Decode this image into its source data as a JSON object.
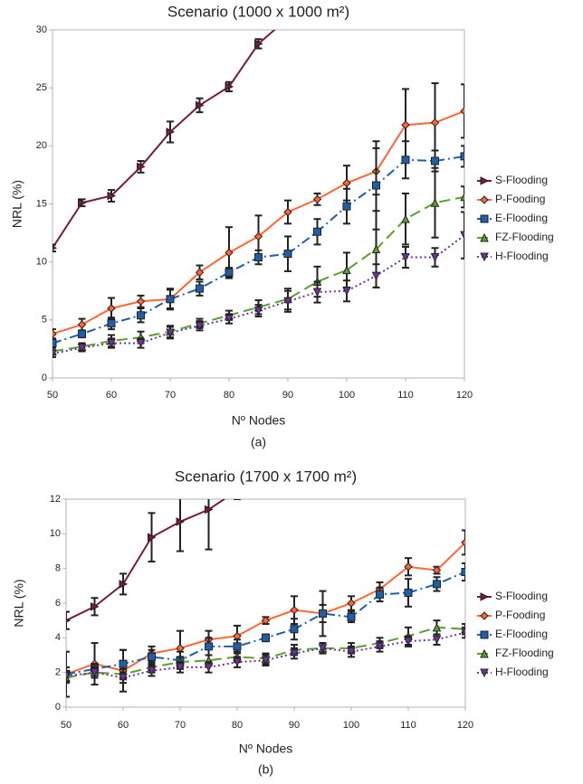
{
  "chart_data": [
    {
      "type": "line",
      "title": "Scenario (1000 x 1000 m²)",
      "subtitle": "(a)",
      "x_label": "Nº Nodes",
      "y_label": "NRL (%)",
      "x": [
        50,
        55,
        60,
        65,
        70,
        75,
        80,
        85,
        90,
        95,
        100,
        105,
        110,
        115,
        120
      ],
      "xlim": [
        50,
        120
      ],
      "xticks": [
        50,
        60,
        70,
        80,
        90,
        100,
        110,
        120
      ],
      "ylim": [
        0,
        30
      ],
      "yticks": [
        0,
        5,
        10,
        15,
        20,
        25,
        30
      ],
      "grid": false,
      "legend": "right",
      "series": [
        {
          "name": "S-Flooding",
          "color": "#7b1a3a",
          "marker": "right-triangle",
          "linestyle": "solid",
          "values": [
            11.2,
            15.1,
            15.7,
            18.2,
            21.2,
            23.5,
            25.1,
            28.8,
            31.0,
            null,
            null,
            null,
            null,
            null,
            null
          ],
          "errors": [
            0.3,
            0.3,
            0.5,
            0.5,
            0.9,
            0.6,
            0.4,
            0.4,
            0.5,
            null,
            null,
            null,
            null,
            null,
            null
          ]
        },
        {
          "name": "P-Fooding",
          "color": "#ff6633",
          "marker": "diamond",
          "linestyle": "solid",
          "values": [
            3.8,
            4.6,
            6.0,
            6.6,
            6.8,
            9.1,
            10.8,
            12.2,
            14.3,
            15.4,
            16.8,
            17.8,
            21.8,
            22.0,
            23.0
          ],
          "errors": [
            0.4,
            0.5,
            0.9,
            0.5,
            0.9,
            0.6,
            2.2,
            1.8,
            1.0,
            0.5,
            1.5,
            2.0,
            3.1,
            3.4,
            2.3
          ]
        },
        {
          "name": "E-Flooding",
          "color": "#1f5fa8",
          "marker": "square",
          "linestyle": "dashdot",
          "values": [
            3.0,
            3.8,
            4.7,
            5.4,
            6.8,
            7.7,
            9.1,
            10.4,
            10.7,
            12.6,
            14.8,
            16.6,
            18.8,
            18.7,
            19.1
          ],
          "errors": [
            0.4,
            0.3,
            0.5,
            0.6,
            0.8,
            0.6,
            0.4,
            0.6,
            1.5,
            1.1,
            1.5,
            3.8,
            1.6,
            0.9,
            0.9
          ]
        },
        {
          "name": "FZ-Flooding",
          "color": "#5aa02c",
          "marker": "triangle-up",
          "linestyle": "dashed",
          "values": [
            2.3,
            2.7,
            3.2,
            3.5,
            4.0,
            4.7,
            5.4,
            6.1,
            6.8,
            8.3,
            9.3,
            11.1,
            13.7,
            15.1,
            15.6
          ],
          "errors": [
            0.3,
            0.3,
            0.5,
            0.5,
            0.5,
            0.4,
            0.4,
            0.6,
            0.9,
            1.3,
            1.5,
            3.3,
            2.2,
            3.0,
            0.9
          ]
        },
        {
          "name": "H-Flooding",
          "color": "#7030a0",
          "marker": "triangle-down",
          "linestyle": "dotted",
          "values": [
            2.1,
            2.6,
            3.0,
            3.0,
            3.9,
            4.5,
            5.1,
            5.8,
            6.6,
            7.4,
            7.5,
            8.8,
            10.4,
            10.4,
            12.3
          ],
          "errors": [
            0.3,
            0.3,
            0.4,
            0.4,
            0.5,
            0.4,
            0.4,
            0.5,
            0.9,
            0.9,
            0.9,
            1.0,
            0.9,
            0.8,
            2.0
          ]
        }
      ]
    },
    {
      "type": "line",
      "title": "Scenario (1700 x 1700 m²)",
      "subtitle": "(b)",
      "x_label": "Nº Nodes",
      "y_label": "NRL (%)",
      "x": [
        50,
        55,
        60,
        65,
        70,
        75,
        80,
        85,
        90,
        95,
        100,
        105,
        110,
        115,
        120
      ],
      "xlim": [
        50,
        120
      ],
      "xticks": [
        50,
        60,
        70,
        80,
        90,
        100,
        110,
        120
      ],
      "ylim": [
        0,
        12
      ],
      "yticks": [
        0,
        2,
        4,
        6,
        8,
        10,
        12
      ],
      "grid": false,
      "legend": "right",
      "series": [
        {
          "name": "S-Flooding",
          "color": "#7b1a3a",
          "marker": "right-triangle",
          "linestyle": "solid",
          "values": [
            5.0,
            5.8,
            7.1,
            9.8,
            10.7,
            11.4,
            12.5,
            null,
            null,
            null,
            null,
            null,
            null,
            null,
            null
          ],
          "errors": [
            0.5,
            0.5,
            0.6,
            1.4,
            1.7,
            2.3,
            0.5,
            null,
            null,
            null,
            null,
            null,
            null,
            null,
            null
          ]
        },
        {
          "name": "P-Fooding",
          "color": "#ff6633",
          "marker": "diamond",
          "linestyle": "solid",
          "values": [
            1.9,
            2.5,
            2.1,
            3.1,
            3.4,
            3.9,
            4.1,
            5.0,
            5.6,
            5.4,
            6.0,
            6.8,
            8.1,
            7.9,
            9.5
          ],
          "errors": [
            1.3,
            1.2,
            1.2,
            0.4,
            1.0,
            0.5,
            0.6,
            0.2,
            0.8,
            1.3,
            0.4,
            0.4,
            0.5,
            0.2,
            0.7
          ]
        },
        {
          "name": "E-Flooding",
          "color": "#1f5fa8",
          "marker": "square",
          "linestyle": "dashdot",
          "values": [
            1.9,
            2.2,
            2.5,
            2.9,
            2.7,
            3.5,
            3.5,
            4.0,
            4.5,
            5.4,
            5.2,
            6.5,
            6.6,
            7.1,
            7.8
          ],
          "errors": [
            0.4,
            0.3,
            0.8,
            0.4,
            0.5,
            0.5,
            0.4,
            0.2,
            0.6,
            0.5,
            0.3,
            0.4,
            0.8,
            0.4,
            0.5
          ]
        },
        {
          "name": "FZ-Flooding",
          "color": "#5aa02c",
          "marker": "triangle-up",
          "linestyle": "dashed",
          "values": [
            1.7,
            2.0,
            1.9,
            2.3,
            2.6,
            2.7,
            2.9,
            2.8,
            3.3,
            3.4,
            3.4,
            3.7,
            4.1,
            4.6,
            4.5
          ],
          "errors": [
            0.3,
            0.3,
            0.3,
            0.3,
            0.3,
            0.3,
            0.3,
            0.3,
            0.3,
            0.3,
            0.3,
            0.3,
            0.5,
            0.4,
            0.3
          ]
        },
        {
          "name": "H-Flooding",
          "color": "#7030a0",
          "marker": "triangle-down",
          "linestyle": "dotted",
          "values": [
            1.8,
            2.0,
            1.7,
            2.1,
            2.3,
            2.3,
            2.6,
            2.7,
            3.1,
            3.4,
            3.2,
            3.5,
            3.8,
            3.9,
            4.3
          ],
          "errors": [
            0.3,
            0.3,
            0.3,
            0.3,
            0.3,
            0.3,
            0.3,
            0.3,
            0.3,
            0.3,
            0.3,
            0.3,
            0.3,
            0.3,
            0.3
          ]
        }
      ]
    }
  ]
}
